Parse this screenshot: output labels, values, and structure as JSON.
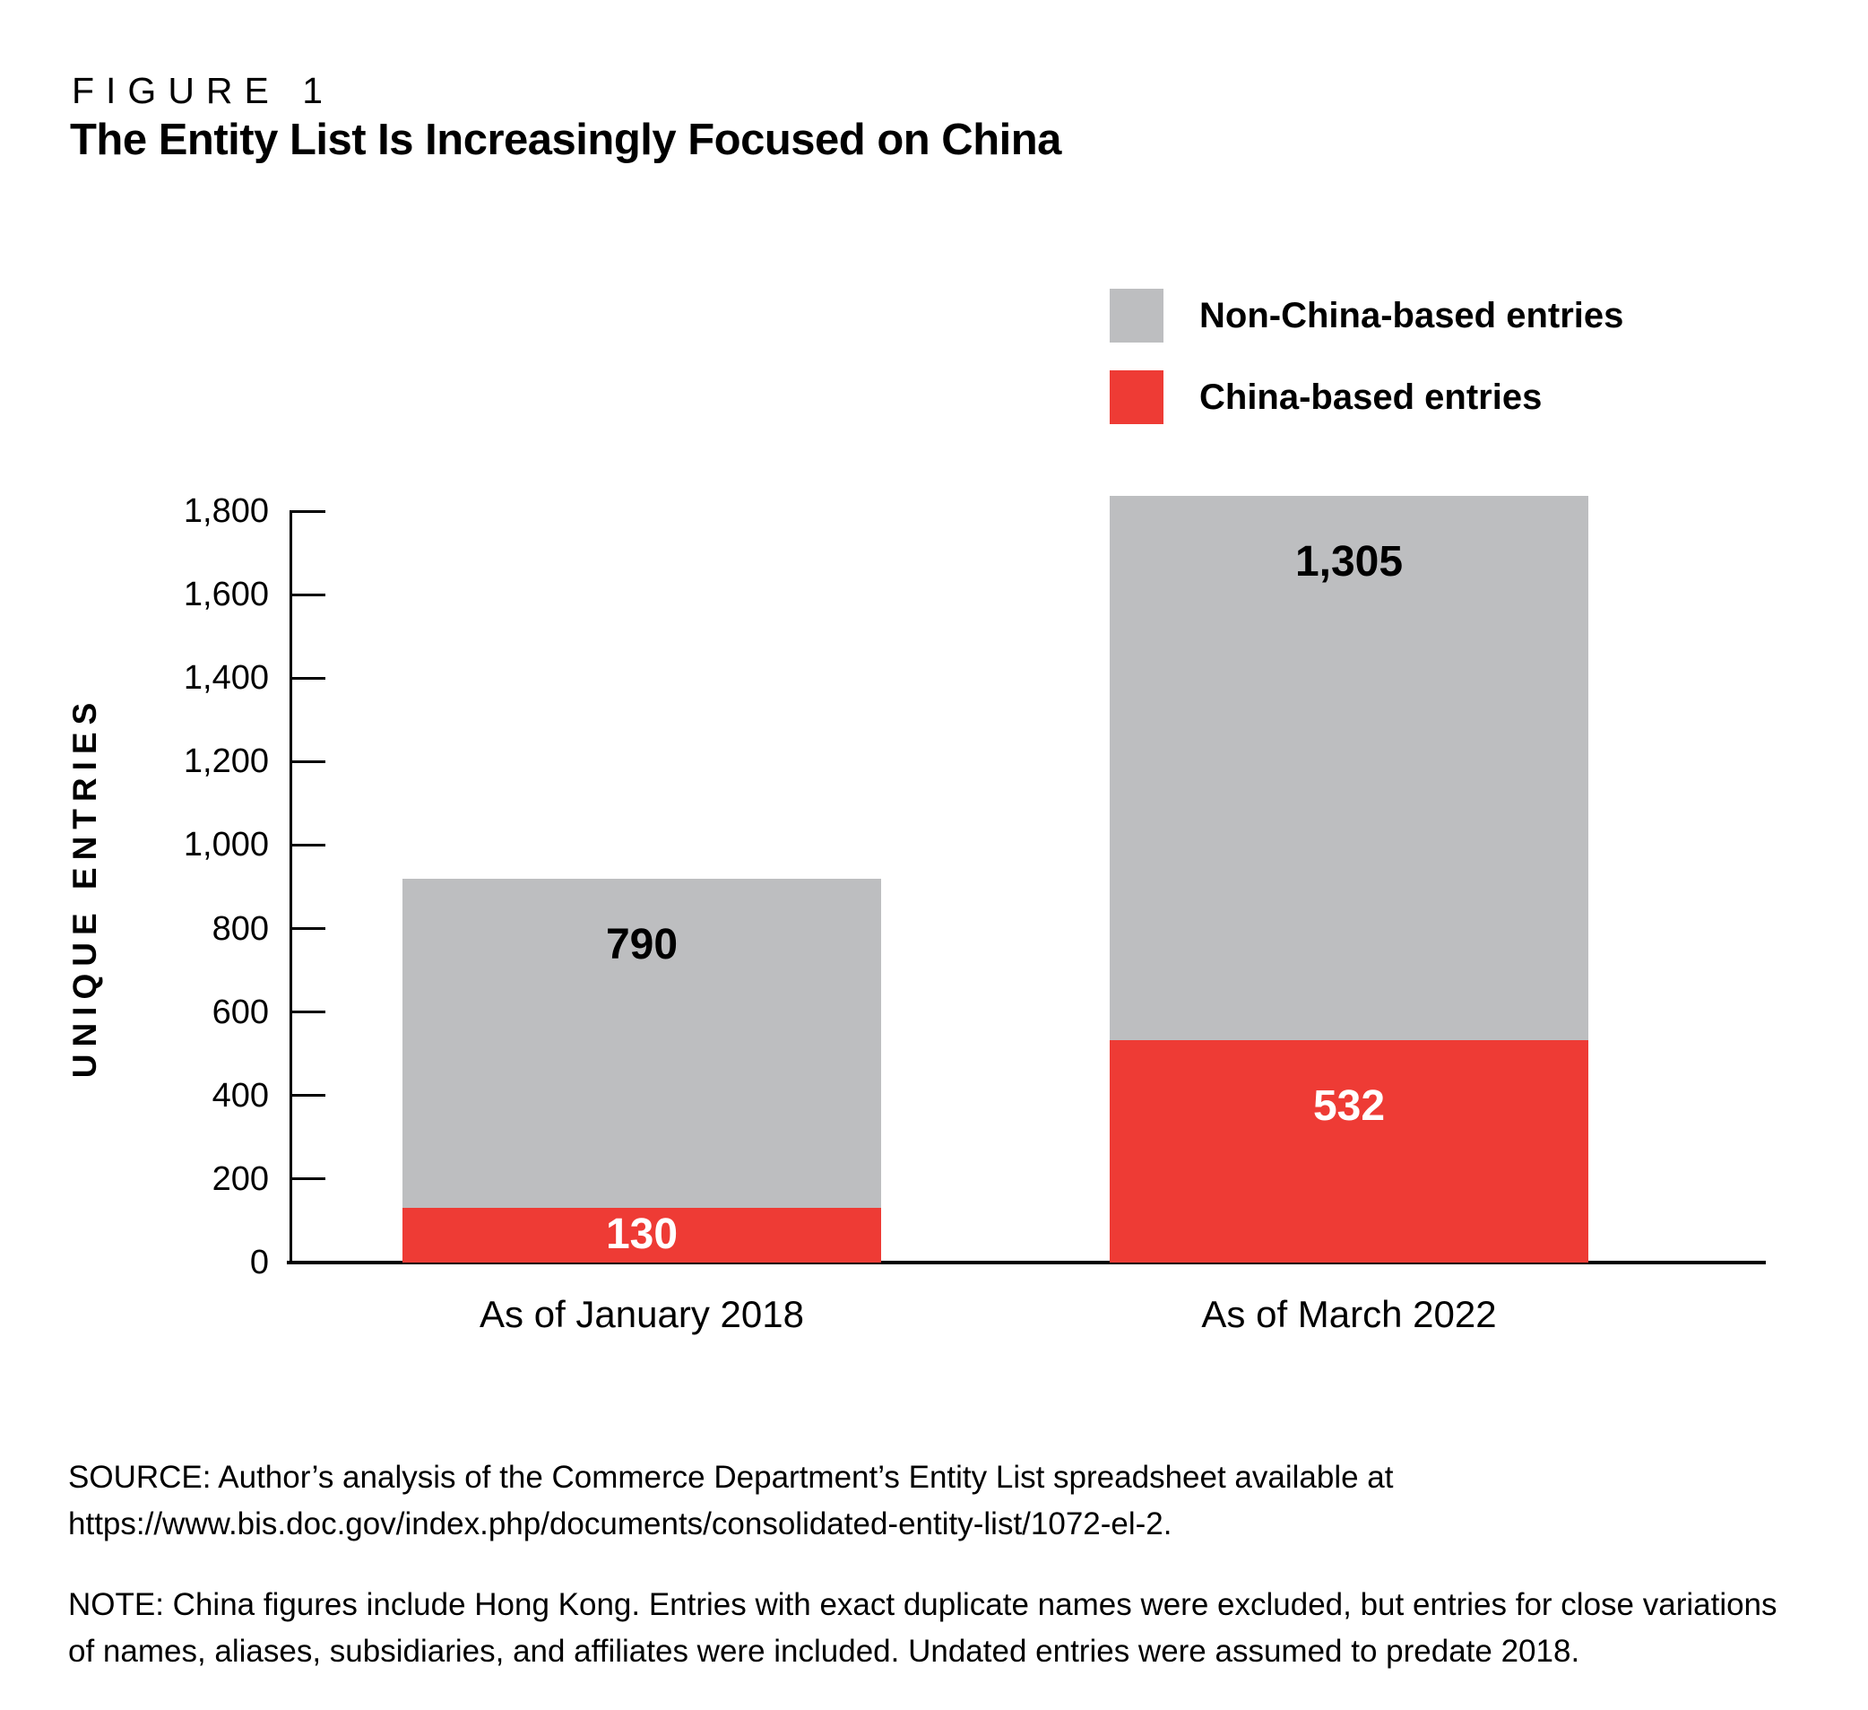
{
  "figure": {
    "label": "FIGURE 1",
    "title": "The Entity List Is Increasingly Focused on China"
  },
  "legend": [
    {
      "label": "Non-China-based entries",
      "color": "#bdbec0"
    },
    {
      "label": "China-based entries",
      "color": "#ee3b35"
    }
  ],
  "chart_data": {
    "type": "bar",
    "stacked": true,
    "title": "The Entity List Is Increasingly Focused on China",
    "categories": [
      "As of January 2018",
      "As of March 2022"
    ],
    "series": [
      {
        "name": "China-based entries",
        "color": "#ee3b35",
        "values": [
          130,
          532
        ],
        "labels": [
          "130",
          "532"
        ],
        "label_color": "#ffffff"
      },
      {
        "name": "Non-China-based entries",
        "color": "#bdbec0",
        "values": [
          790,
          1305
        ],
        "labels": [
          "790",
          "1,305"
        ],
        "label_color": "#000000"
      }
    ],
    "totals": [
      920,
      1837
    ],
    "xlabel": "",
    "ylabel": "UNIQUE ENTRIES",
    "ylim": [
      0,
      1800
    ],
    "ytick_step": 200,
    "ytick_labels": [
      "0",
      "200",
      "400",
      "600",
      "800",
      "1,000",
      "1,200",
      "1,400",
      "1,600",
      "1,800"
    ],
    "grid": false,
    "legend_position": "top-right"
  },
  "source": {
    "lines": [
      "SOURCE: Author’s analysis of the Commerce Department’s Entity List spreadsheet available at",
      "https://www.bis.doc.gov/index.php/documents/consolidated-entity-list/1072-el-2."
    ]
  },
  "note": {
    "lines": [
      "NOTE: China figures include Hong Kong. Entries with exact duplicate names were excluded, but entries for close variations",
      "of names, aliases, subsidiaries, and affiliates were included. Undated entries were assumed to predate 2018."
    ]
  }
}
